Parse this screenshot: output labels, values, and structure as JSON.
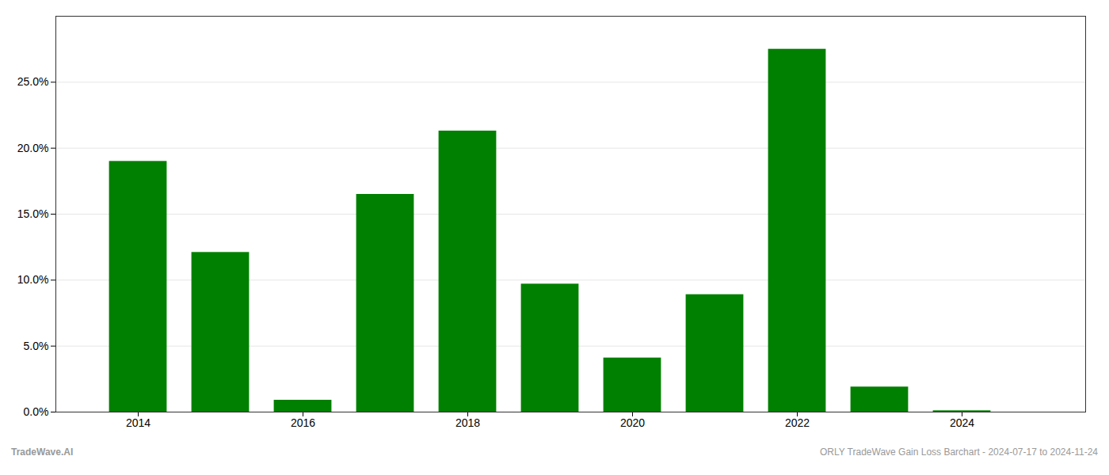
{
  "chart_data": {
    "type": "bar",
    "x": [
      2014,
      2015,
      2016,
      2017,
      2018,
      2019,
      2020,
      2021,
      2022,
      2023,
      2024
    ],
    "values": [
      0.19,
      0.121,
      0.009,
      0.165,
      0.213,
      0.097,
      0.041,
      0.089,
      0.275,
      0.019,
      0.001
    ],
    "color": "#008000",
    "xlim": [
      2013.0,
      2025.5
    ],
    "xticks": [
      2014,
      2016,
      2018,
      2020,
      2022,
      2024
    ],
    "ylim": [
      0.0,
      0.3
    ],
    "yticks": [
      {
        "value": 0.0,
        "label": "0.0%"
      },
      {
        "value": 0.05,
        "label": "5.0%"
      },
      {
        "value": 0.1,
        "label": "10.0%"
      },
      {
        "value": 0.15,
        "label": "15.0%"
      },
      {
        "value": 0.2,
        "label": "20.0%"
      },
      {
        "value": 0.25,
        "label": "25.0%"
      }
    ],
    "grid": true,
    "annotations": [
      "TradeWave.AI",
      "ORLY TradeWave Gain Loss Barchart - 2024-07-17 to 2024-11-24"
    ]
  }
}
